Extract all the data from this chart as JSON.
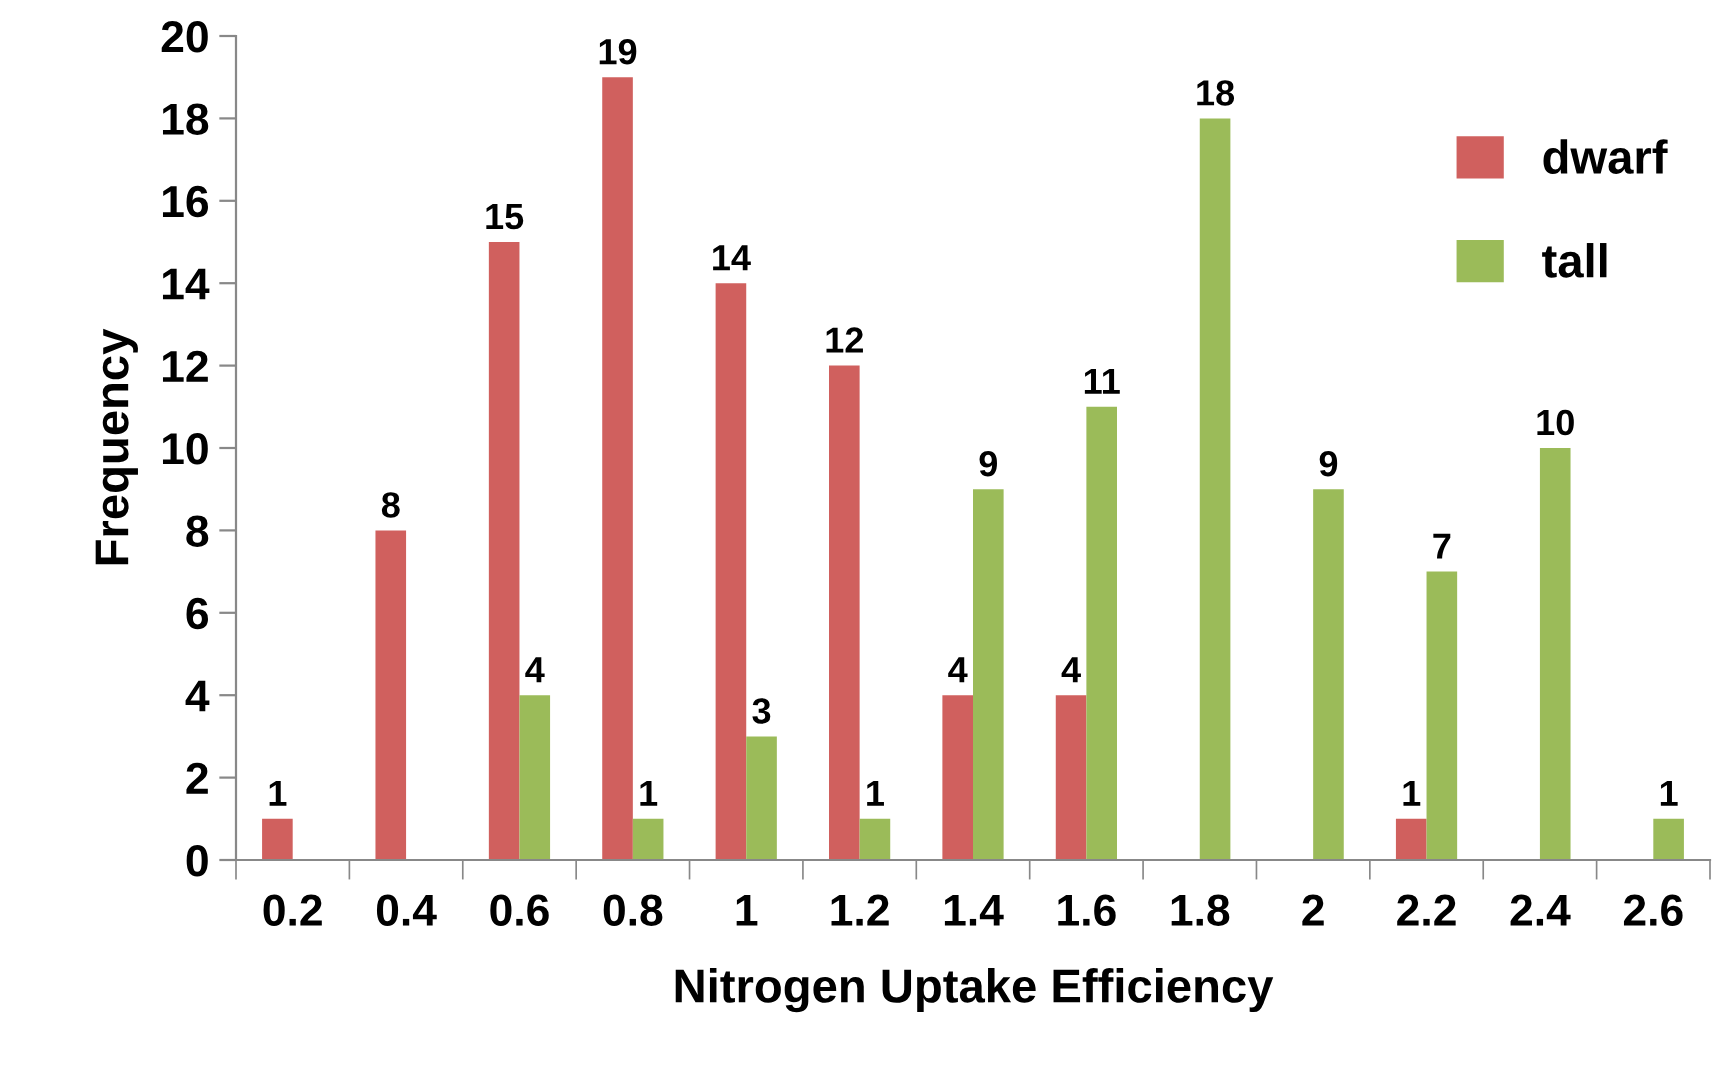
{
  "chart_data": {
    "type": "bar",
    "xlabel": "Nitrogen Uptake Efficiency",
    "ylabel": "Frequency",
    "categories": [
      "0.2",
      "0.4",
      "0.6",
      "0.8",
      "1",
      "1.2",
      "1.4",
      "1.6",
      "1.8",
      "2",
      "2.2",
      "2.4",
      "2.6"
    ],
    "series": [
      {
        "name": "dwarf",
        "color": "#d0605e",
        "values": [
          1,
          8,
          15,
          19,
          14,
          12,
          4,
          4,
          0,
          0,
          1,
          0,
          0
        ],
        "value_labels": [
          "1",
          "8",
          "15",
          "19",
          "14",
          "12",
          "4",
          "4",
          null,
          null,
          "1",
          null,
          null
        ]
      },
      {
        "name": "tall",
        "color": "#9bbb59",
        "values": [
          0,
          0,
          4,
          1,
          3,
          1,
          9,
          11,
          18,
          9,
          7,
          10,
          1
        ],
        "value_labels": [
          null,
          null,
          "4",
          "1",
          "3",
          "1",
          "9",
          "11",
          "18",
          "9",
          "7",
          "10",
          "1"
        ]
      }
    ],
    "ylim": [
      0,
      20
    ],
    "yticks": [
      0,
      2,
      4,
      6,
      8,
      10,
      12,
      14,
      16,
      18,
      20
    ],
    "grid": false,
    "legend": "top right"
  }
}
